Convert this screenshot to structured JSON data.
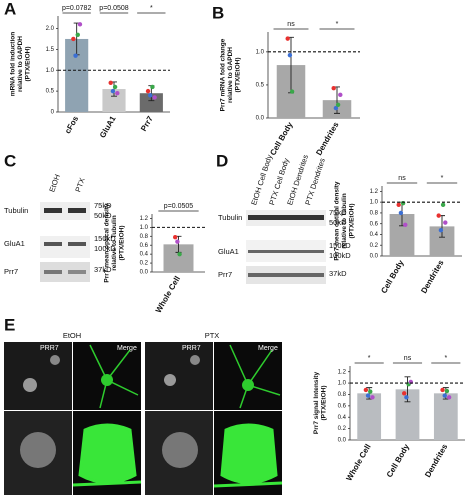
{
  "chart_data": [
    {
      "type": "bar",
      "ylabel": [
        "mRNA fold induction",
        "relative to GAPDH",
        "(PTX/EtOH)"
      ],
      "categories": [
        "cFos",
        "GluA1",
        "Prr7"
      ],
      "values": [
        1.75,
        0.55,
        0.45
      ],
      "errors": [
        0.38,
        0.17,
        0.18
      ],
      "colors": [
        "#8fa3b2",
        "#c9c9c9",
        "#6b6b6b"
      ],
      "replicates": [
        {
          "color": "#e8312f",
          "values": [
            1.75,
            0.7,
            0.5
          ]
        },
        {
          "color": "#3b6fd4",
          "values": [
            1.35,
            0.5,
            0.4
          ]
        },
        {
          "color": "#3aa84a",
          "values": [
            1.85,
            0.6,
            0.6
          ]
        },
        {
          "color": "#b04fc8",
          "values": [
            2.1,
            0.45,
            0.35
          ]
        }
      ],
      "annotations": [
        "p=0.0782",
        "p=0.0508",
        "*"
      ],
      "reference_line": 1,
      "ylim": [
        0,
        2.3
      ],
      "yticks": [
        0,
        0.5,
        {
          "value": 1,
          "label": "1.0"
        },
        1.5,
        {
          "value": 2,
          "label": "2.0"
        }
      ]
    },
    {
      "type": "bar",
      "ylabel": [
        "Prr7 mRNA fold change",
        "relative to GAPDH",
        "(PTX/EtOH)"
      ],
      "categories": [
        "Cell Body",
        "Dendrites"
      ],
      "values": [
        0.8,
        0.27
      ],
      "errors": [
        0.42,
        0.2
      ],
      "colors": [
        "#a8a8a8",
        "#a8a8a8"
      ],
      "replicates": [
        {
          "color": "#e8312f",
          "values": [
            1.2,
            0.45
          ]
        },
        {
          "color": "#3b6fd4",
          "values": [
            0.95,
            0.15
          ]
        },
        {
          "color": "#3aa84a",
          "values": [
            0.4,
            0.2
          ]
        },
        {
          "color": "#b04fc8",
          "values": [
            null,
            0.35
          ]
        }
      ],
      "annotations": [
        "ns",
        "*"
      ],
      "reference_line": 1,
      "ylim": [
        0,
        1.3
      ],
      "yticks": [
        {
          "value": 0,
          "label": "0.0"
        },
        0.5,
        {
          "value": 1,
          "label": "1.0"
        }
      ]
    },
    {
      "type": "bar",
      "ylabel": [
        "Prr7 mean optical density",
        "relative to Tubulin",
        "(PTX/EtOH)"
      ],
      "categories": [
        "Whole Cell"
      ],
      "values": [
        0.62
      ],
      "errors": [
        0.18
      ],
      "colors": [
        "#a8a8a8"
      ],
      "replicates": [
        {
          "color": "#e8312f",
          "values": [
            0.78
          ]
        },
        {
          "color": "#b04fc8",
          "values": [
            0.68
          ]
        },
        {
          "color": "#3aa84a",
          "values": [
            0.4
          ]
        }
      ],
      "annotations": [
        "p=0.0505"
      ],
      "reference_line": 1,
      "ylim": [
        0,
        1.3
      ],
      "yticks": [
        {
          "value": 0,
          "label": "0.0"
        },
        0.2,
        0.4,
        0.6,
        0.8,
        {
          "value": 1,
          "label": "1.0"
        },
        1.2
      ]
    },
    {
      "type": "bar",
      "ylabel": [
        "Prr7 mean optical density",
        "relative to Tubulin",
        "(PTX/EtOH)"
      ],
      "categories": [
        "Cell Body",
        "Dendrites"
      ],
      "values": [
        0.78,
        0.55
      ],
      "errors": [
        0.22,
        0.2
      ],
      "colors": [
        "#a8a8a8",
        "#a8a8a8"
      ],
      "replicates": [
        {
          "color": "#e8312f",
          "values": [
            0.95,
            0.75
          ]
        },
        {
          "color": "#3b6fd4",
          "values": [
            0.8,
            0.48
          ]
        },
        {
          "color": "#3aa84a",
          "values": [
            0.98,
            0.95
          ]
        },
        {
          "color": "#b04fc8",
          "values": [
            0.58,
            0.62
          ]
        }
      ],
      "annotations": [
        "ns",
        "*"
      ],
      "reference_line": 1,
      "ylim": [
        0,
        1.3
      ],
      "yticks": [
        {
          "value": 0,
          "label": "0.0"
        },
        0.2,
        0.4,
        0.6,
        0.8,
        {
          "value": 1,
          "label": "1.0"
        },
        1.2
      ]
    },
    {
      "type": "bar",
      "ylabel": [
        "Prr7 signal Intensity",
        "(PTX/EtOH)"
      ],
      "categories": [
        "Whole Cell",
        "Cell Body",
        "Dendrites"
      ],
      "values": [
        0.82,
        0.89,
        0.82
      ],
      "errors": [
        0.1,
        0.22,
        0.1
      ],
      "colors": [
        "#b9bcc0",
        "#b9bcc0",
        "#b9bcc0"
      ],
      "replicates": [
        {
          "color": "#e8312f",
          "values": [
            0.88,
            0.82,
            0.88
          ]
        },
        {
          "color": "#3b6fd4",
          "values": [
            0.78,
            0.75,
            0.78
          ]
        },
        {
          "color": "#3aa84a",
          "values": [
            0.85,
            0.98,
            0.86
          ]
        },
        {
          "color": "#b04fc8",
          "values": [
            0.75,
            1.02,
            0.75
          ]
        }
      ],
      "annotations": [
        "*",
        "ns",
        "*"
      ],
      "reference_line": 1,
      "ylim": [
        0,
        1.3
      ],
      "yticks": [
        {
          "value": 0,
          "label": "0.0"
        },
        0.2,
        0.4,
        0.6,
        0.8,
        {
          "value": 1,
          "label": "1.0"
        },
        1.2
      ]
    }
  ],
  "figure": {
    "panels": [
      "A",
      "B",
      "C",
      "D",
      "E"
    ],
    "blot_c": {
      "lanes": [
        "EtOH",
        "PTX"
      ],
      "rows": [
        "Tubulin",
        "GluA1",
        "Prr7"
      ],
      "markers": [
        "75kD",
        "50kD",
        "150kD",
        "100kD",
        "37kD"
      ]
    },
    "blot_d": {
      "lanes": [
        "EtOH Cell Body",
        "PTX Cell Body",
        "EtOH Dendrites",
        "PTX Dendrites"
      ],
      "rows": [
        "Tubulin",
        "GluA1",
        "Prr7"
      ],
      "markers": [
        "75kD",
        "50kD",
        "150kD",
        "100kD",
        "37kD"
      ]
    },
    "images_e": {
      "conditions": [
        "EtOH",
        "PTX"
      ],
      "labels": [
        "PRR7",
        "Merge",
        "PRR7",
        "Merge"
      ]
    }
  }
}
